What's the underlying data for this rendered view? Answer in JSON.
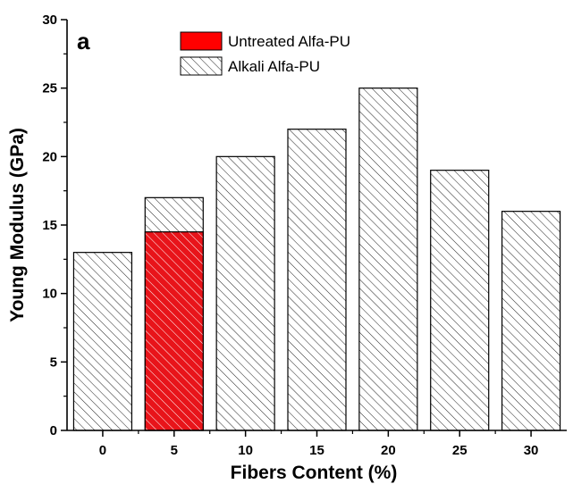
{
  "chart_data": {
    "type": "bar",
    "panel_label": "a",
    "xlabel": "Fibers Content (%)",
    "ylabel": "Young Modulus (GPa)",
    "ylim": [
      0,
      30
    ],
    "yticks": [
      "0",
      "5",
      "10",
      "15",
      "20",
      "25",
      "30"
    ],
    "categories": [
      "0",
      "5",
      "10",
      "15",
      "20",
      "25",
      "30"
    ],
    "series": [
      {
        "name": "Alkali Alfa-PU",
        "fill": "hatch",
        "color": "#000000",
        "values": [
          13,
          17,
          20,
          22,
          25,
          19,
          16
        ]
      },
      {
        "name": "Untreated Alfa-PU",
        "fill": "solid",
        "color": "#ff0000",
        "values": [
          null,
          14.5,
          null,
          null,
          null,
          null,
          null
        ]
      }
    ],
    "legend_position": "top-center",
    "grid": false
  }
}
